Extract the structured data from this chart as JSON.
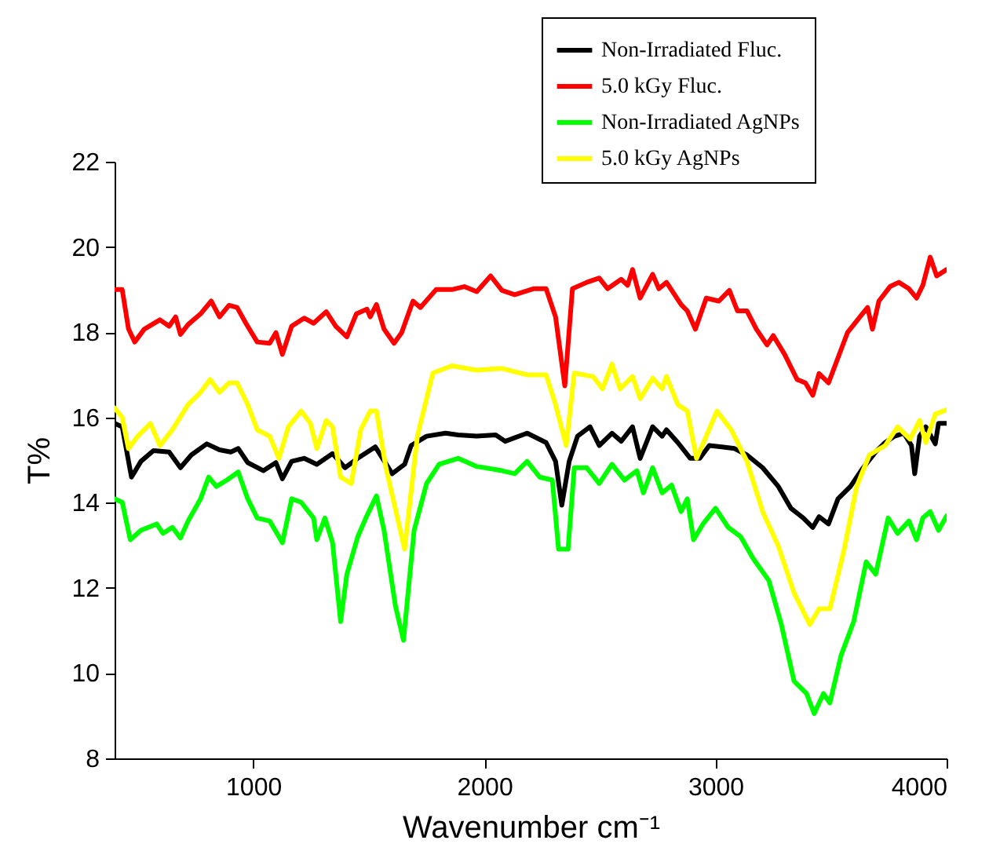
{
  "chart_data": {
    "type": "line",
    "xlabel": "Wavenumber cm⁻¹",
    "ylabel": "T%",
    "xlim": [
      400,
      4000
    ],
    "ylim": [
      8,
      22
    ],
    "xticks": [
      1000,
      2000,
      3000,
      4000
    ],
    "yticks": [
      8,
      10,
      12,
      14,
      16,
      18,
      20,
      22
    ],
    "grid": false,
    "legend": "top right",
    "marker": "none",
    "line_style": "solid",
    "series": [
      {
        "name": "Non-Irradiated Fluc.",
        "color": "#000000",
        "x": [
          400,
          433,
          473,
          514,
          568,
          636,
          685,
          732,
          799,
          854,
          903,
          935,
          976,
          1044,
          1098,
          1126,
          1166,
          1220,
          1275,
          1343,
          1397,
          1452,
          1528,
          1601,
          1655,
          1683,
          1750,
          1832,
          1886,
          1967,
          2049,
          2090,
          2185,
          2267,
          2308,
          2335,
          2367,
          2403,
          2457,
          2497,
          2552,
          2592,
          2641,
          2674,
          2728,
          2769,
          2788,
          2837,
          2891,
          2932,
          2973,
          3027,
          3082,
          3136,
          3204,
          3272,
          3326,
          3380,
          3421,
          3448,
          3489,
          3530,
          3584,
          3639,
          3693,
          3734,
          3775,
          3815,
          3848,
          3862,
          3883,
          3910,
          3951,
          3965,
          4000
        ],
        "values": [
          15.86,
          15.78,
          14.6,
          14.97,
          15.22,
          15.19,
          14.82,
          15.12,
          15.38,
          15.24,
          15.19,
          15.27,
          14.94,
          14.75,
          14.94,
          14.56,
          14.97,
          15.04,
          14.9,
          15.15,
          14.82,
          15.04,
          15.31,
          14.68,
          14.9,
          15.34,
          15.56,
          15.63,
          15.59,
          15.56,
          15.59,
          15.44,
          15.63,
          15.41,
          14.97,
          13.94,
          14.97,
          15.56,
          15.78,
          15.34,
          15.63,
          15.44,
          15.78,
          15.04,
          15.78,
          15.56,
          15.71,
          15.41,
          15.04,
          15.04,
          15.34,
          15.31,
          15.27,
          15.12,
          14.82,
          14.38,
          13.87,
          13.64,
          13.42,
          13.67,
          13.5,
          14.09,
          14.38,
          14.82,
          15.19,
          15.41,
          15.56,
          15.63,
          15.34,
          14.68,
          15.56,
          15.78,
          15.38,
          15.86,
          15.86
        ]
      },
      {
        "name": "5.0 kGy Fluc.",
        "color": "#ff0000",
        "x": [
          400,
          433,
          460,
          487,
          528,
          596,
          636,
          664,
          685,
          718,
          772,
          818,
          854,
          895,
          930,
          968,
          1017,
          1071,
          1098,
          1126,
          1166,
          1220,
          1261,
          1316,
          1357,
          1405,
          1446,
          1492,
          1506,
          1533,
          1566,
          1609,
          1642,
          1691,
          1723,
          1791,
          1859,
          1913,
          1967,
          2027,
          2076,
          2131,
          2212,
          2267,
          2308,
          2348,
          2381,
          2443,
          2497,
          2533,
          2592,
          2620,
          2641,
          2674,
          2728,
          2755,
          2788,
          2851,
          2878,
          2913,
          2960,
          3014,
          3060,
          3095,
          3136,
          3177,
          3223,
          3250,
          3299,
          3353,
          3389,
          3421,
          3448,
          3489,
          3530,
          3571,
          3625,
          3658,
          3679,
          3707,
          3755,
          3793,
          3837,
          3870,
          3897,
          3929,
          3957,
          4000
        ],
        "values": [
          19.0,
          19.0,
          18.08,
          17.77,
          18.07,
          18.29,
          18.14,
          18.36,
          17.95,
          18.18,
          18.43,
          18.73,
          18.36,
          18.63,
          18.58,
          18.21,
          17.77,
          17.74,
          17.99,
          17.48,
          18.14,
          18.33,
          18.21,
          18.48,
          18.14,
          17.89,
          18.43,
          18.54,
          18.36,
          18.65,
          18.07,
          17.74,
          17.99,
          18.73,
          18.58,
          19.0,
          19.0,
          19.07,
          18.95,
          19.32,
          18.98,
          18.88,
          19.02,
          19.02,
          18.36,
          16.74,
          19.02,
          19.17,
          19.27,
          19.02,
          19.24,
          19.1,
          19.47,
          18.8,
          19.36,
          19.02,
          19.17,
          18.65,
          18.5,
          18.07,
          18.8,
          18.73,
          18.98,
          18.5,
          18.5,
          18.07,
          17.7,
          17.92,
          17.48,
          16.89,
          16.81,
          16.52,
          17.03,
          16.81,
          17.4,
          17.99,
          18.36,
          18.58,
          18.07,
          18.73,
          19.07,
          19.17,
          19.02,
          18.8,
          19.1,
          19.76,
          19.32,
          19.47
        ]
      },
      {
        "name": "Non-Irradiated AgNPs",
        "color": "#00ff00",
        "x": [
          400,
          433,
          468,
          514,
          582,
          609,
          650,
          685,
          718,
          772,
          807,
          840,
          886,
          935,
          976,
          1017,
          1071,
          1126,
          1166,
          1207,
          1261,
          1275,
          1310,
          1343,
          1378,
          1405,
          1452,
          1487,
          1533,
          1566,
          1615,
          1650,
          1696,
          1750,
          1804,
          1886,
          1967,
          2076,
          2131,
          2185,
          2239,
          2294,
          2321,
          2362,
          2389,
          2443,
          2497,
          2552,
          2606,
          2660,
          2688,
          2728,
          2769,
          2810,
          2851,
          2878,
          2905,
          2946,
          3000,
          3055,
          3109,
          3163,
          3231,
          3285,
          3340,
          3394,
          3427,
          3467,
          3495,
          3543,
          3598,
          3652,
          3693,
          3747,
          3788,
          3837,
          3870,
          3897,
          3929,
          3965,
          4000
        ],
        "values": [
          14.09,
          14.01,
          13.13,
          13.35,
          13.5,
          13.28,
          13.42,
          13.17,
          13.57,
          14.09,
          14.6,
          14.38,
          14.53,
          14.72,
          14.09,
          13.64,
          13.57,
          13.06,
          14.09,
          14.01,
          13.64,
          13.13,
          13.64,
          13.06,
          11.21,
          12.32,
          13.2,
          13.64,
          14.16,
          13.35,
          11.58,
          10.77,
          13.35,
          14.45,
          14.9,
          15.04,
          14.85,
          14.75,
          14.68,
          14.97,
          14.6,
          14.53,
          12.91,
          12.91,
          14.82,
          14.82,
          14.45,
          14.9,
          14.53,
          14.75,
          14.23,
          14.82,
          14.23,
          14.41,
          13.79,
          14.09,
          13.13,
          13.5,
          13.87,
          13.42,
          13.2,
          12.69,
          12.17,
          11.14,
          9.81,
          9.52,
          9.05,
          9.52,
          9.3,
          10.41,
          11.21,
          12.61,
          12.32,
          13.64,
          13.28,
          13.57,
          13.13,
          13.64,
          13.79,
          13.35,
          13.69
        ]
      },
      {
        "name": "5.0 kGy AgNPs",
        "color": "#ffff00",
        "x": [
          400,
          433,
          460,
          500,
          555,
          596,
          650,
          718,
          772,
          813,
          854,
          895,
          930,
          976,
          1017,
          1071,
          1111,
          1152,
          1207,
          1247,
          1275,
          1316,
          1343,
          1378,
          1424,
          1465,
          1506,
          1533,
          1574,
          1655,
          1710,
          1777,
          1859,
          1967,
          2076,
          2185,
          2267,
          2308,
          2354,
          2389,
          2470,
          2511,
          2552,
          2587,
          2641,
          2674,
          2728,
          2769,
          2788,
          2837,
          2878,
          2918,
          2960,
          3006,
          3068,
          3136,
          3204,
          3272,
          3340,
          3408,
          3448,
          3495,
          3557,
          3611,
          3666,
          3734,
          3788,
          3842,
          3883,
          3910,
          3951,
          4000
        ],
        "values": [
          16.22,
          16.0,
          15.27,
          15.56,
          15.86,
          15.34,
          15.71,
          16.3,
          16.59,
          16.89,
          16.59,
          16.81,
          16.81,
          16.3,
          15.71,
          15.56,
          15.04,
          15.78,
          16.15,
          15.86,
          15.27,
          15.93,
          15.78,
          14.6,
          14.45,
          15.71,
          16.15,
          16.15,
          14.82,
          12.91,
          15.56,
          17.04,
          17.21,
          17.11,
          17.15,
          17.0,
          17.0,
          16.3,
          15.34,
          17.04,
          16.96,
          16.67,
          17.25,
          16.67,
          16.96,
          16.44,
          16.92,
          16.67,
          16.96,
          16.3,
          16.15,
          15.04,
          15.56,
          16.15,
          15.71,
          14.97,
          13.79,
          12.98,
          11.88,
          11.14,
          11.51,
          11.51,
          12.91,
          14.38,
          15.12,
          15.34,
          15.78,
          15.49,
          15.93,
          15.41,
          16.08,
          16.18
        ]
      }
    ]
  }
}
